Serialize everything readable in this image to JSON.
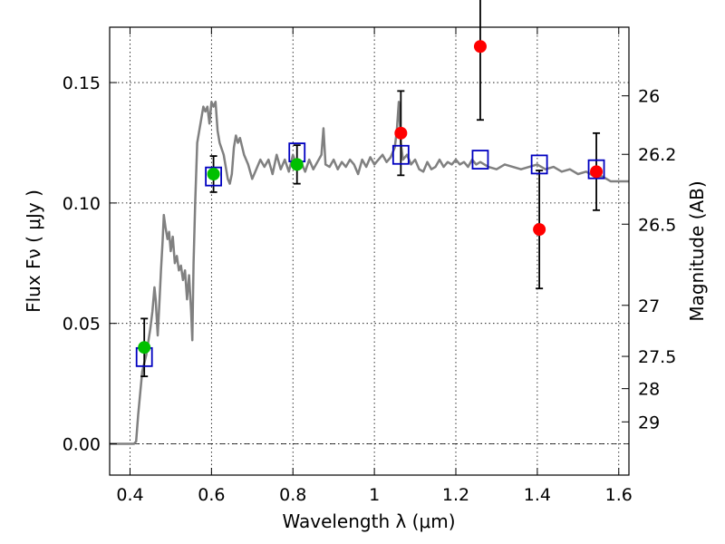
{
  "chart_data": {
    "type": "scatter",
    "title": "",
    "xlabel": "Wavelength  λ (μm)",
    "ylabel": "Flux  Fν  ( μJy )",
    "y2label": "Magnitude (AB)",
    "xlim": [
      0.35,
      1.625
    ],
    "ylim": [
      -0.013,
      0.173
    ],
    "grid": true,
    "x_ticks": [
      {
        "value": 0.4,
        "label": "0.4"
      },
      {
        "value": 0.6,
        "label": "0.6"
      },
      {
        "value": 0.8,
        "label": "0.8"
      },
      {
        "value": 1.0,
        "label": "1"
      },
      {
        "value": 1.2,
        "label": "1.2"
      },
      {
        "value": 1.4,
        "label": "1.4"
      },
      {
        "value": 1.6,
        "label": "1.6"
      }
    ],
    "y_ticks": [
      {
        "value": 0.0,
        "label": "0.00"
      },
      {
        "value": 0.05,
        "label": "0.05"
      },
      {
        "value": 0.1,
        "label": "0.10"
      },
      {
        "value": 0.15,
        "label": "0.15"
      }
    ],
    "y2_ticks": [
      {
        "flux": 0.1445,
        "label": "26"
      },
      {
        "flux": 0.1202,
        "label": "26.2"
      },
      {
        "flux": 0.0912,
        "label": "26.5"
      },
      {
        "flux": 0.0575,
        "label": "27"
      },
      {
        "flux": 0.0363,
        "label": "27.5"
      },
      {
        "flux": 0.0229,
        "label": "28"
      },
      {
        "flux": 0.0091,
        "label": "29"
      }
    ],
    "colors": {
      "model": "#808080",
      "green": "#00c000",
      "red": "#ff0000",
      "square": "#0000c0",
      "errorbar": "#000000",
      "zero_line": "#000000"
    },
    "series": [
      {
        "kind": "line",
        "points": [
          [
            0.35,
            0.0
          ],
          [
            0.41,
            0.0
          ],
          [
            0.415,
            0.001
          ],
          [
            0.42,
            0.012
          ],
          [
            0.43,
            0.03
          ],
          [
            0.44,
            0.037
          ],
          [
            0.45,
            0.048
          ],
          [
            0.455,
            0.055
          ],
          [
            0.46,
            0.065
          ],
          [
            0.463,
            0.06
          ],
          [
            0.468,
            0.045
          ],
          [
            0.472,
            0.058
          ],
          [
            0.476,
            0.072
          ],
          [
            0.48,
            0.084
          ],
          [
            0.483,
            0.095
          ],
          [
            0.487,
            0.09
          ],
          [
            0.492,
            0.085
          ],
          [
            0.496,
            0.088
          ],
          [
            0.5,
            0.08
          ],
          [
            0.505,
            0.086
          ],
          [
            0.51,
            0.075
          ],
          [
            0.515,
            0.078
          ],
          [
            0.52,
            0.072
          ],
          [
            0.525,
            0.074
          ],
          [
            0.53,
            0.068
          ],
          [
            0.535,
            0.072
          ],
          [
            0.54,
            0.06
          ],
          [
            0.545,
            0.07
          ],
          [
            0.55,
            0.055
          ],
          [
            0.553,
            0.043
          ],
          [
            0.556,
            0.075
          ],
          [
            0.56,
            0.1
          ],
          [
            0.565,
            0.125
          ],
          [
            0.57,
            0.13
          ],
          [
            0.575,
            0.135
          ],
          [
            0.58,
            0.14
          ],
          [
            0.585,
            0.138
          ],
          [
            0.59,
            0.14
          ],
          [
            0.595,
            0.133
          ],
          [
            0.6,
            0.142
          ],
          [
            0.605,
            0.14
          ],
          [
            0.61,
            0.142
          ],
          [
            0.615,
            0.13
          ],
          [
            0.62,
            0.125
          ],
          [
            0.63,
            0.12
          ],
          [
            0.64,
            0.11
          ],
          [
            0.645,
            0.108
          ],
          [
            0.65,
            0.112
          ],
          [
            0.655,
            0.123
          ],
          [
            0.66,
            0.128
          ],
          [
            0.665,
            0.125
          ],
          [
            0.67,
            0.127
          ],
          [
            0.68,
            0.12
          ],
          [
            0.69,
            0.116
          ],
          [
            0.7,
            0.11
          ],
          [
            0.71,
            0.114
          ],
          [
            0.72,
            0.118
          ],
          [
            0.73,
            0.115
          ],
          [
            0.74,
            0.118
          ],
          [
            0.75,
            0.112
          ],
          [
            0.76,
            0.12
          ],
          [
            0.77,
            0.114
          ],
          [
            0.78,
            0.118
          ],
          [
            0.79,
            0.113
          ],
          [
            0.8,
            0.12
          ],
          [
            0.81,
            0.115
          ],
          [
            0.82,
            0.117
          ],
          [
            0.83,
            0.113
          ],
          [
            0.84,
            0.118
          ],
          [
            0.85,
            0.114
          ],
          [
            0.86,
            0.117
          ],
          [
            0.87,
            0.12
          ],
          [
            0.875,
            0.131
          ],
          [
            0.88,
            0.116
          ],
          [
            0.89,
            0.115
          ],
          [
            0.9,
            0.118
          ],
          [
            0.91,
            0.114
          ],
          [
            0.92,
            0.117
          ],
          [
            0.93,
            0.115
          ],
          [
            0.94,
            0.118
          ],
          [
            0.95,
            0.116
          ],
          [
            0.96,
            0.112
          ],
          [
            0.97,
            0.118
          ],
          [
            0.98,
            0.115
          ],
          [
            0.99,
            0.119
          ],
          [
            1.0,
            0.116
          ],
          [
            1.01,
            0.118
          ],
          [
            1.02,
            0.12
          ],
          [
            1.03,
            0.117
          ],
          [
            1.04,
            0.119
          ],
          [
            1.05,
            0.123
          ],
          [
            1.055,
            0.13
          ],
          [
            1.06,
            0.142
          ],
          [
            1.065,
            0.125
          ],
          [
            1.07,
            0.118
          ],
          [
            1.08,
            0.12
          ],
          [
            1.09,
            0.116
          ],
          [
            1.1,
            0.118
          ],
          [
            1.11,
            0.114
          ],
          [
            1.12,
            0.113
          ],
          [
            1.13,
            0.117
          ],
          [
            1.14,
            0.114
          ],
          [
            1.15,
            0.115
          ],
          [
            1.16,
            0.118
          ],
          [
            1.17,
            0.115
          ],
          [
            1.18,
            0.117
          ],
          [
            1.19,
            0.116
          ],
          [
            1.2,
            0.118
          ],
          [
            1.21,
            0.116
          ],
          [
            1.22,
            0.117
          ],
          [
            1.23,
            0.115
          ],
          [
            1.24,
            0.118
          ],
          [
            1.25,
            0.116
          ],
          [
            1.26,
            0.117
          ],
          [
            1.28,
            0.115
          ],
          [
            1.3,
            0.114
          ],
          [
            1.32,
            0.116
          ],
          [
            1.34,
            0.115
          ],
          [
            1.36,
            0.114
          ],
          [
            1.38,
            0.115
          ],
          [
            1.4,
            0.116
          ],
          [
            1.42,
            0.114
          ],
          [
            1.44,
            0.115
          ],
          [
            1.46,
            0.113
          ],
          [
            1.48,
            0.114
          ],
          [
            1.5,
            0.112
          ],
          [
            1.52,
            0.113
          ],
          [
            1.54,
            0.111
          ],
          [
            1.56,
            0.111
          ],
          [
            1.58,
            0.109
          ],
          [
            1.6,
            0.109
          ],
          [
            1.625,
            0.109
          ]
        ]
      },
      {
        "kind": "squares",
        "points": [
          [
            0.435,
            0.036
          ],
          [
            0.605,
            0.111
          ],
          [
            0.81,
            0.121
          ],
          [
            1.065,
            0.12
          ],
          [
            1.26,
            0.118
          ],
          [
            1.405,
            0.116
          ],
          [
            1.545,
            0.114
          ]
        ]
      },
      {
        "kind": "green-points",
        "points": [
          {
            "x": 0.435,
            "y": 0.04,
            "err": 0.012
          },
          {
            "x": 0.605,
            "y": 0.112,
            "err": 0.0075
          },
          {
            "x": 0.81,
            "y": 0.116,
            "err": 0.008
          }
        ]
      },
      {
        "kind": "red-points",
        "points": [
          {
            "x": 1.065,
            "y": 0.129,
            "err": 0.0175
          },
          {
            "x": 1.26,
            "y": 0.165,
            "err": 0.0305
          },
          {
            "x": 1.405,
            "y": 0.089,
            "err": 0.0245
          },
          {
            "x": 1.545,
            "y": 0.113,
            "err": 0.016
          }
        ]
      }
    ]
  }
}
